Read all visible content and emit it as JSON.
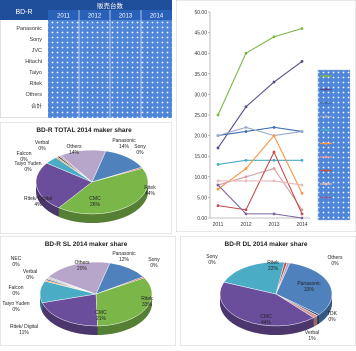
{
  "table": {
    "corner": "BD-R",
    "header": "販売台数",
    "years": [
      "2011",
      "2012",
      "2013",
      "2014"
    ],
    "rows": [
      "Panasonic",
      "Sony",
      "JVC",
      "Hitachi",
      "Taiyo",
      "Ritek",
      "Others",
      "合計"
    ]
  },
  "chart_data": [
    {
      "type": "line",
      "x": [
        2011,
        2012,
        2013,
        2014
      ],
      "ylim": [
        0,
        50
      ],
      "yticks": [
        "0.00",
        "5.00",
        "10.00",
        "15.00",
        "20.00",
        "25.00",
        "30.00",
        "35.00",
        "40.00",
        "45.00",
        "50.00"
      ],
      "series": [
        {
          "values": [
            25,
            40,
            44,
            46
          ],
          "color": "#7ab648"
        },
        {
          "values": [
            17,
            27,
            33,
            38
          ],
          "color": "#5b4a8b"
        },
        {
          "values": [
            20,
            21,
            22,
            21
          ],
          "color": "#3f6fb0"
        },
        {
          "values": [
            20,
            22,
            20,
            21
          ],
          "color": "#9aa8c8"
        },
        {
          "values": [
            13,
            14,
            14,
            14
          ],
          "color": "#4bacc6"
        },
        {
          "values": [
            7,
            12,
            20,
            6
          ],
          "color": "#f79646"
        },
        {
          "values": [
            8,
            10,
            12,
            2
          ],
          "color": "#d4a0a0"
        },
        {
          "values": [
            3,
            2,
            16,
            1
          ],
          "color": "#c0504d"
        },
        {
          "values": [
            9,
            9,
            9,
            8
          ],
          "color": "#e6b9b8"
        },
        {
          "values": [
            8,
            1,
            1,
            0
          ],
          "color": "#8064a2"
        }
      ]
    },
    {
      "type": "pie",
      "title": "BD-R TOTAL 2014 maker share",
      "slices": [
        {
          "label": "Panasonic",
          "value": "14%",
          "v": 14,
          "color": "#4f81bd"
        },
        {
          "label": "Sony",
          "value": "0%",
          "v": 0.6,
          "color": "#c0504d"
        },
        {
          "label": "Ritek",
          "value": "44%",
          "v": 44,
          "color": "#7ab648"
        },
        {
          "label": "CMC",
          "value": "26%",
          "v": 26,
          "color": "#6b4e9b"
        },
        {
          "label": "Ritek/ Digital",
          "value": "4%",
          "v": 4,
          "color": "#4bacc6"
        },
        {
          "label": "Taiyo Yuden",
          "value": "0%",
          "v": 0.6,
          "color": "#f79646"
        },
        {
          "label": "Falcon",
          "value": "0%",
          "v": 0.6,
          "color": "#2c4d75"
        },
        {
          "label": "Verbal",
          "value": "0%",
          "v": 0.6,
          "color": "#d99694"
        },
        {
          "label": "Others",
          "value": "14%",
          "v": 14,
          "color": "#b7a6c9"
        }
      ]
    },
    {
      "type": "pie",
      "title": "BD-R SL 2014 maker share",
      "slices": [
        {
          "label": "Panasonic",
          "value": "12%",
          "v": 12,
          "color": "#4f81bd"
        },
        {
          "label": "Sony",
          "value": "0%",
          "v": 0.6,
          "color": "#c0504d"
        },
        {
          "label": "Ritek",
          "value": "33%",
          "v": 33,
          "color": "#7ab648"
        },
        {
          "label": "CMC",
          "value": "21%",
          "v": 21,
          "color": "#6b4e9b"
        },
        {
          "label": "Ritek/ Digital",
          "value": "11%",
          "v": 11,
          "color": "#4bacc6"
        },
        {
          "label": "Taiyo Yuden",
          "value": "0%",
          "v": 0.6,
          "color": "#f79646"
        },
        {
          "label": "Falcon",
          "value": "0%",
          "v": 0.6,
          "color": "#2c4d75"
        },
        {
          "label": "Verbal",
          "value": "0%",
          "v": 0.6,
          "color": "#d99694"
        },
        {
          "label": "NEC",
          "value": "0%",
          "v": 0.6,
          "color": "#92cddc"
        },
        {
          "label": "Others",
          "value": "20%",
          "v": 20,
          "color": "#b7a6c9"
        }
      ]
    },
    {
      "type": "pie",
      "title": "BD-R DL 2014 maker share",
      "slices": [
        {
          "label": "Panasonic",
          "value": "33%",
          "v": 33,
          "color": "#4f81bd"
        },
        {
          "label": "TDK",
          "value": "0%",
          "v": 0.8,
          "color": "#2c4d75"
        },
        {
          "label": "Verbal",
          "value": "1%",
          "v": 1.5,
          "color": "#d99694"
        },
        {
          "label": "CMC",
          "value": "44%",
          "v": 44,
          "color": "#6b4e9b"
        },
        {
          "label": "Ritek",
          "value": "22%",
          "v": 22,
          "color": "#4bacc6"
        },
        {
          "label": "Sony",
          "value": "0%",
          "v": 0.8,
          "color": "#c0504d"
        },
        {
          "label": "Others",
          "value": "0%",
          "v": 0.8,
          "color": "#b7a6c9"
        }
      ]
    }
  ]
}
